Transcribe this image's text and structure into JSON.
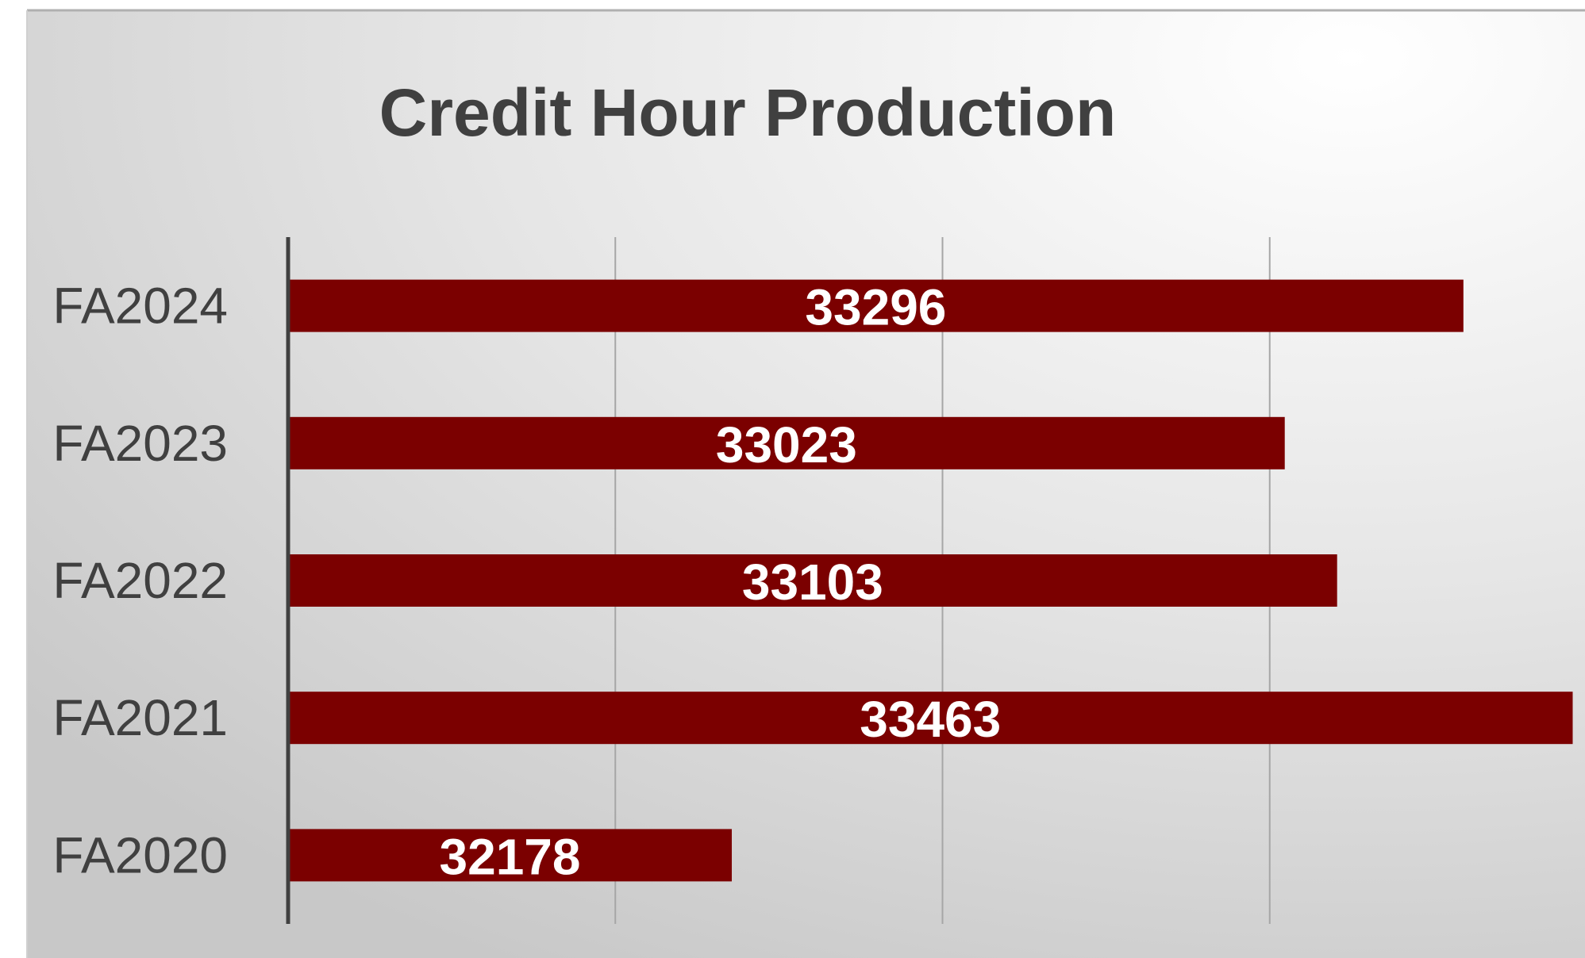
{
  "chart_data": {
    "type": "bar",
    "orientation": "horizontal",
    "title": "Credit Hour Production",
    "categories": [
      "FA2024",
      "FA2023",
      "FA2022",
      "FA2021",
      "FA2020"
    ],
    "values": [
      33296,
      33023,
      33103,
      33463,
      32178
    ],
    "color": "#7b0000",
    "xlim": [
      31500,
      33500
    ],
    "xticks": [
      32000,
      32500,
      33000
    ],
    "grid": true
  }
}
